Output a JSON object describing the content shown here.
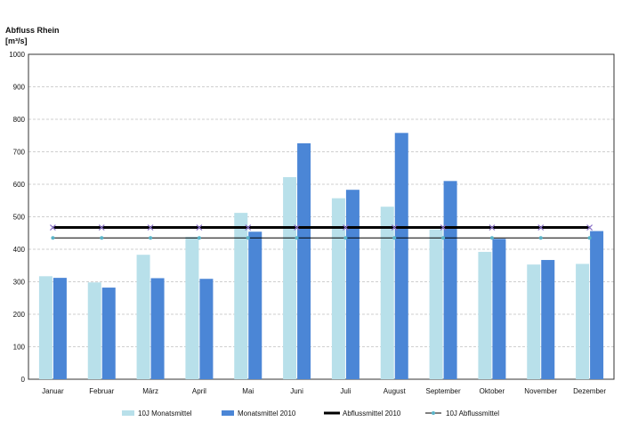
{
  "chart_data": {
    "type": "bar",
    "title": "Abfluss Rhein",
    "ylabel": "[m³/s]",
    "xlabel": "",
    "ylim": [
      0,
      1000
    ],
    "yticks": [
      0,
      100,
      200,
      300,
      400,
      500,
      600,
      700,
      800,
      900,
      1000
    ],
    "grid": true,
    "categories": [
      "Januar",
      "Februar",
      "März",
      "April",
      "Mai",
      "Juni",
      "Juli",
      "August",
      "September",
      "Oktober",
      "November",
      "Dezember"
    ],
    "series": [
      {
        "name": "10J Monatsmittel",
        "type": "bar",
        "color": "#b8e0ea",
        "values": [
          317,
          298,
          383,
          438,
          512,
          622,
          557,
          531,
          461,
          392,
          353,
          355
        ]
      },
      {
        "name": "Monatsmittel 2010",
        "type": "bar",
        "color": "#4b86d6",
        "values": [
          312,
          282,
          311,
          309,
          454,
          726,
          583,
          758,
          610,
          432,
          367,
          456
        ]
      },
      {
        "name": "Abflussmittel 2010",
        "type": "line",
        "color": "#000000",
        "values": [
          467,
          467,
          467,
          467,
          467,
          467,
          467,
          467,
          467,
          467,
          467,
          467
        ]
      },
      {
        "name": "10J Abflussmittel",
        "type": "line",
        "color": "#000000",
        "marker_color": "#5ab4c8",
        "values": [
          435,
          435,
          435,
          435,
          435,
          435,
          435,
          435,
          435,
          435,
          435,
          435
        ]
      }
    ],
    "legend_position": "bottom"
  }
}
